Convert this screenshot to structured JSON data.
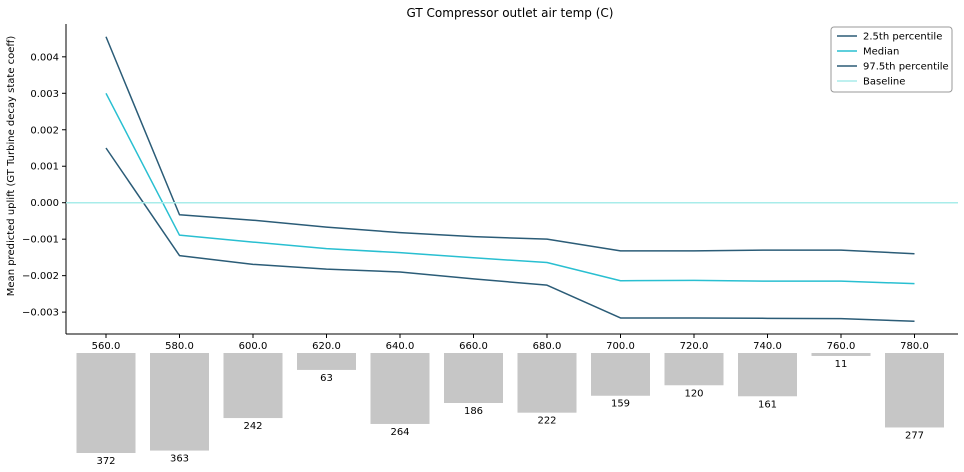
{
  "chart_data": {
    "type": "line",
    "title": "GT Compressor outlet air temp (C)",
    "xlabel": "",
    "ylabel": "Mean predicted uplift (GT Turbine decay state coeff)",
    "categories": [
      "560.0",
      "580.0",
      "600.0",
      "620.0",
      "640.0",
      "660.0",
      "680.0",
      "700.0",
      "720.0",
      "740.0",
      "760.0",
      "780.0"
    ],
    "ylim": [
      -0.0036,
      0.0049
    ],
    "yticks": [
      0.004,
      0.003,
      0.002,
      0.001,
      0.0,
      -0.001,
      -0.002,
      -0.003
    ],
    "ytick_labels": [
      "0.004",
      "0.003",
      "0.002",
      "0.001",
      "0.000",
      "−0.001",
      "−0.002",
      "−0.003"
    ],
    "series": [
      {
        "name": "2.5th percentile",
        "color": "#2b5c77",
        "values": [
          0.00455,
          -0.00033,
          -0.00048,
          -0.00067,
          -0.00082,
          -0.00093,
          -0.001,
          -0.00132,
          -0.00132,
          -0.0013,
          -0.0013,
          -0.0014
        ]
      },
      {
        "name": "Median",
        "color": "#29bfd1",
        "values": [
          0.003,
          -0.00089,
          -0.00108,
          -0.00126,
          -0.00137,
          -0.00151,
          -0.00164,
          -0.00214,
          -0.00213,
          -0.00215,
          -0.00215,
          -0.00222
        ]
      },
      {
        "name": "97.5th percentile",
        "color": "#2b5c77",
        "values": [
          0.0015,
          -0.00145,
          -0.00169,
          -0.00182,
          -0.0019,
          -0.00209,
          -0.00226,
          -0.00316,
          -0.00316,
          -0.00317,
          -0.00318,
          -0.00325
        ]
      },
      {
        "name": "Baseline",
        "color": "#a8ecea",
        "values": [
          0,
          0,
          0,
          0,
          0,
          0,
          0,
          0,
          0,
          0,
          0,
          0
        ]
      }
    ],
    "counts": [
      372,
      363,
      242,
      63,
      264,
      186,
      222,
      159,
      120,
      161,
      11,
      277
    ],
    "count_bar_color": "#c6c6c6",
    "legend_position": "top-right",
    "grid": false
  }
}
